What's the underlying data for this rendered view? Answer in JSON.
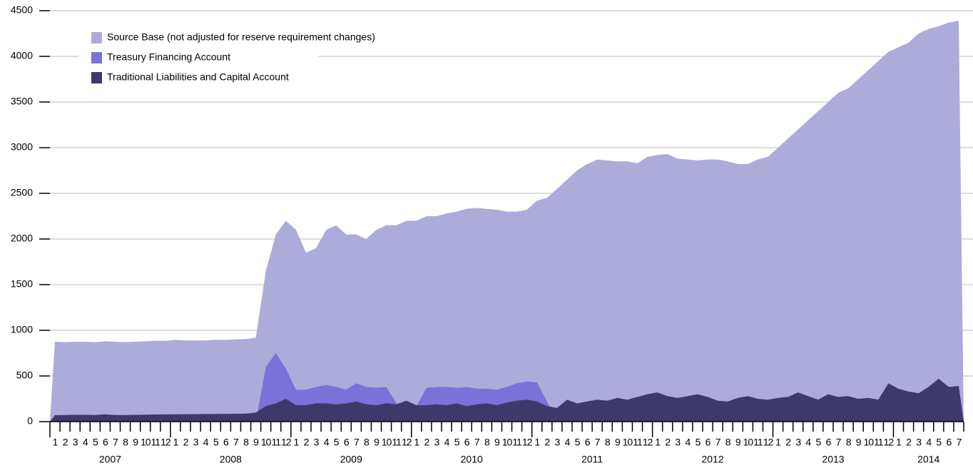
{
  "chart_data": {
    "type": "area",
    "categories": [
      "1",
      "2",
      "3",
      "4",
      "5",
      "6",
      "7",
      "8",
      "9",
      "10",
      "11",
      "12",
      "1",
      "2",
      "3",
      "4",
      "5",
      "6",
      "7",
      "8",
      "9",
      "10",
      "11",
      "12",
      "1",
      "2",
      "3",
      "4",
      "5",
      "6",
      "7",
      "8",
      "9",
      "10",
      "11",
      "12",
      "1",
      "2",
      "3",
      "4",
      "5",
      "6",
      "7",
      "8",
      "9",
      "10",
      "11",
      "12",
      "1",
      "2",
      "3",
      "4",
      "5",
      "6",
      "7",
      "8",
      "9",
      "10",
      "11",
      "12",
      "1",
      "2",
      "3",
      "4",
      "5",
      "6",
      "7",
      "8",
      "9",
      "10",
      "11",
      "12",
      "1",
      "2",
      "3",
      "4",
      "5",
      "6",
      "7",
      "8",
      "9",
      "10",
      "11",
      "12",
      "1",
      "2",
      "3",
      "4",
      "5",
      "6",
      "7"
    ],
    "years": [
      "2007",
      "2008",
      "2009",
      "2010",
      "2011",
      "2012",
      "2013",
      "2014"
    ],
    "series": [
      {
        "name": "Source Base (not adjusted for reserve requirement changes)",
        "color": "#adabd9",
        "values": [
          875,
          870,
          875,
          875,
          870,
          880,
          875,
          870,
          875,
          880,
          885,
          885,
          895,
          890,
          890,
          890,
          895,
          895,
          900,
          905,
          920,
          1650,
          2050,
          2200,
          2100,
          1850,
          1900,
          2100,
          2150,
          2050,
          2050,
          2000,
          2100,
          2150,
          2150,
          2200,
          2200,
          2250,
          2250,
          2280,
          2300,
          2330,
          2340,
          2330,
          2320,
          2300,
          2300,
          2320,
          2420,
          2450,
          2550,
          2650,
          2750,
          2820,
          2870,
          2860,
          2850,
          2850,
          2830,
          2900,
          2920,
          2930,
          2880,
          2870,
          2860,
          2870,
          2870,
          2850,
          2820,
          2820,
          2870,
          2900,
          3000,
          3100,
          3200,
          3300,
          3400,
          3500,
          3600,
          3650,
          3750,
          3850,
          3950,
          4050,
          4100,
          4150,
          4250,
          4300,
          4330,
          4370,
          4390
        ]
      },
      {
        "name": "Treasury Financing Account",
        "color": "#7a72d8",
        "values": [
          0,
          0,
          0,
          0,
          0,
          0,
          0,
          0,
          0,
          0,
          0,
          0,
          0,
          0,
          0,
          0,
          0,
          0,
          0,
          0,
          0,
          600,
          750,
          580,
          350,
          350,
          380,
          400,
          380,
          350,
          420,
          380,
          370,
          380,
          200,
          180,
          170,
          370,
          380,
          380,
          370,
          380,
          360,
          360,
          350,
          380,
          420,
          440,
          430,
          220,
          0,
          0,
          0,
          0,
          0,
          0,
          0,
          0,
          0,
          0,
          0,
          0,
          0,
          0,
          0,
          0,
          0,
          0,
          0,
          0,
          0,
          0,
          0,
          0,
          0,
          0,
          0,
          0,
          0,
          0,
          0,
          0,
          0,
          0,
          0,
          0,
          0,
          0,
          0,
          0,
          0
        ]
      },
      {
        "name": "Traditional Liabilities and Capital Account",
        "color": "#3d3a6b",
        "values": [
          70,
          72,
          75,
          75,
          72,
          80,
          72,
          72,
          74,
          76,
          78,
          80,
          80,
          82,
          82,
          84,
          84,
          85,
          86,
          88,
          100,
          170,
          200,
          250,
          180,
          180,
          200,
          200,
          190,
          200,
          220,
          190,
          180,
          200,
          190,
          230,
          180,
          180,
          190,
          180,
          200,
          170,
          190,
          200,
          180,
          210,
          230,
          240,
          220,
          170,
          150,
          240,
          200,
          220,
          240,
          230,
          260,
          240,
          270,
          300,
          320,
          280,
          260,
          280,
          300,
          270,
          230,
          220,
          260,
          280,
          250,
          240,
          260,
          270,
          320,
          280,
          240,
          300,
          270,
          280,
          250,
          260,
          240,
          420,
          360,
          330,
          310,
          380,
          470,
          380,
          390
        ]
      }
    ],
    "ylim": [
      0,
      4500
    ],
    "yticks": [
      0,
      500,
      1000,
      1500,
      2000,
      2500,
      3000,
      3500,
      4000,
      4500
    ],
    "grid": true
  }
}
